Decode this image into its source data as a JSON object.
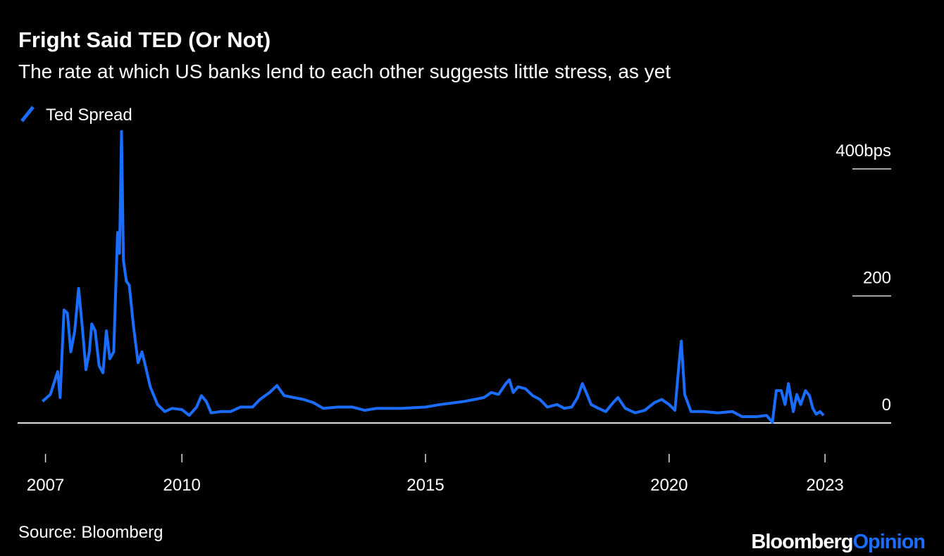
{
  "chart_data": {
    "type": "line",
    "title": "Fright Said TED (Or Not)",
    "subtitle": "The rate at which US banks lend to each other suggests little stress, as yet",
    "x": [
      2007.14,
      2007.3,
      2007.45,
      2007.5,
      2007.58,
      2007.65,
      2007.72,
      2007.8,
      2007.88,
      2007.95,
      2008.03,
      2008.1,
      2008.15,
      2008.22,
      2008.3,
      2008.38,
      2008.45,
      2008.52,
      2008.6,
      2008.68,
      2008.72,
      2008.76,
      2008.8,
      2008.86,
      2008.92,
      2009.0,
      2009.1,
      2009.18,
      2009.25,
      2009.35,
      2009.5,
      2009.65,
      2009.8,
      2010.0,
      2010.15,
      2010.3,
      2010.4,
      2010.5,
      2010.6,
      2010.8,
      2011.0,
      2011.2,
      2011.45,
      2011.6,
      2011.8,
      2011.95,
      2012.1,
      2012.3,
      2012.5,
      2012.7,
      2012.9,
      2013.2,
      2013.5,
      2013.75,
      2014.0,
      2014.5,
      2015.0,
      2015.3,
      2015.6,
      2015.8,
      2016.0,
      2016.2,
      2016.35,
      2016.5,
      2016.65,
      2016.72,
      2016.8,
      2016.9,
      2017.05,
      2017.2,
      2017.35,
      2017.5,
      2017.7,
      2017.85,
      2018.0,
      2018.12,
      2018.22,
      2018.3,
      2018.4,
      2018.55,
      2018.7,
      2018.85,
      2018.95,
      2019.1,
      2019.3,
      2019.5,
      2019.7,
      2019.85,
      2020.0,
      2020.12,
      2020.2,
      2020.25,
      2020.32,
      2020.45,
      2020.7,
      2021.0,
      2021.3,
      2021.5,
      2021.8,
      2022.0,
      2022.12,
      2022.2,
      2022.3,
      2022.38,
      2022.45,
      2022.55,
      2022.62,
      2022.7,
      2022.8,
      2022.88,
      2022.95,
      2023.02,
      2023.1,
      2023.17
    ],
    "series": [
      {
        "name": "Ted Spread",
        "color": "#1a6dff",
        "values": [
          34,
          45,
          81,
          40,
          178,
          173,
          112,
          145,
          212,
          156,
          84,
          112,
          156,
          145,
          90,
          79,
          145,
          101,
          112,
          300,
          267,
          459,
          256,
          223,
          217,
          156,
          95,
          112,
          90,
          57,
          29,
          18,
          23,
          21,
          12,
          25,
          43,
          34,
          16,
          18,
          18,
          25,
          25,
          37,
          48,
          59,
          43,
          40,
          37,
          32,
          23,
          25,
          25,
          20,
          23,
          23,
          25,
          29,
          32,
          34,
          37,
          40,
          48,
          45,
          62,
          68,
          48,
          57,
          54,
          43,
          37,
          25,
          29,
          23,
          25,
          40,
          62,
          48,
          29,
          23,
          18,
          32,
          40,
          23,
          16,
          20,
          32,
          37,
          29,
          20,
          90,
          129,
          45,
          18,
          18,
          16,
          18,
          10,
          10,
          12,
          1,
          51,
          51,
          29,
          62,
          18,
          45,
          29,
          51,
          43,
          23,
          14,
          18,
          12
        ]
      }
    ],
    "xlim": [
      2006.7,
      2024.5
    ],
    "xticks": [
      {
        "value": 2007.2,
        "label": "2007"
      },
      2010,
      2015,
      2020,
      {
        "value": 2023.2,
        "label": "2023"
      }
    ],
    "ylim": [
      0,
      470
    ],
    "yticks": [
      0,
      200,
      {
        "value": 400,
        "label": "400bps"
      }
    ],
    "legend": "top-left"
  },
  "footer": {
    "source": "Source: Bloomberg",
    "brand": "Bloomberg",
    "brand_suffix": "Opinion"
  }
}
